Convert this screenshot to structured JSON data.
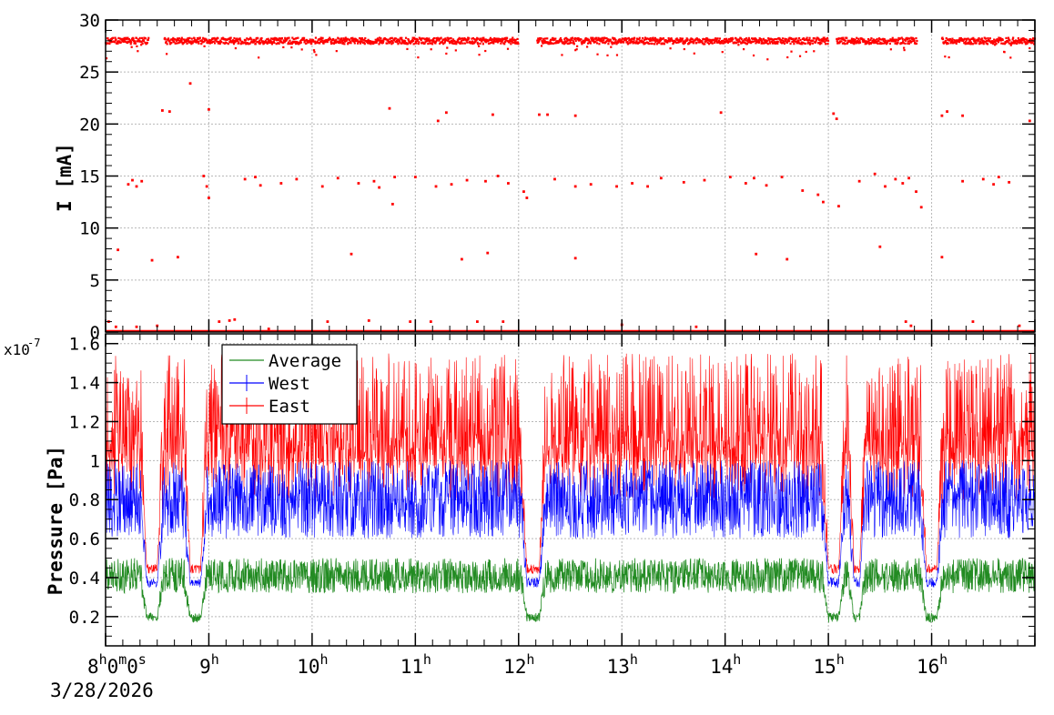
{
  "chart_data": [
    {
      "type": "scatter",
      "ylabel": "I [mA]",
      "ylim": [
        0,
        30
      ],
      "y_ticks": [
        "0",
        "5",
        "10",
        "15",
        "20",
        "25",
        "30"
      ],
      "xlim_hours": [
        8.0,
        17.0
      ],
      "grid": true,
      "color": "#ff0000",
      "series": [
        {
          "name": "",
          "beam_on_level_mA": 28.0,
          "beam_on_intervals_h": [
            [
              8.0,
              8.42
            ],
            [
              8.57,
              9.85
            ],
            [
              9.85,
              12.0
            ],
            [
              12.18,
              15.0
            ],
            [
              15.08,
              15.86
            ],
            [
              16.1,
              17.0
            ]
          ],
          "sparse_points": [
            [
              8.03,
              1.0
            ],
            [
              8.1,
              0.5
            ],
            [
              8.12,
              7.9
            ],
            [
              8.22,
              14.2
            ],
            [
              8.26,
              14.6
            ],
            [
              8.3,
              14.0
            ],
            [
              8.35,
              14.5
            ],
            [
              8.3,
              0.5
            ],
            [
              8.45,
              6.9
            ],
            [
              8.5,
              0.6
            ],
            [
              8.55,
              21.3
            ],
            [
              8.62,
              21.2
            ],
            [
              8.7,
              7.2
            ],
            [
              8.82,
              23.9
            ],
            [
              8.95,
              15.0
            ],
            [
              8.98,
              14.0
            ],
            [
              9.0,
              12.9
            ],
            [
              9.0,
              21.4
            ],
            [
              9.1,
              1.0
            ],
            [
              9.2,
              1.1
            ],
            [
              9.25,
              1.2
            ],
            [
              9.35,
              14.7
            ],
            [
              9.45,
              14.9
            ],
            [
              9.5,
              14.1
            ],
            [
              9.58,
              0.3
            ],
            [
              9.7,
              14.3
            ],
            [
              9.85,
              14.7
            ],
            [
              10.1,
              14.0
            ],
            [
              10.15,
              1.0
            ],
            [
              10.25,
              14.8
            ],
            [
              10.38,
              7.5
            ],
            [
              10.45,
              14.3
            ],
            [
              10.55,
              1.1
            ],
            [
              10.6,
              14.5
            ],
            [
              10.65,
              13.9
            ],
            [
              10.75,
              21.5
            ],
            [
              10.78,
              12.3
            ],
            [
              10.8,
              14.9
            ],
            [
              10.95,
              1.0
            ],
            [
              11.0,
              14.9
            ],
            [
              11.15,
              1.0
            ],
            [
              11.2,
              14.0
            ],
            [
              11.22,
              20.3
            ],
            [
              11.3,
              21.1
            ],
            [
              11.35,
              14.2
            ],
            [
              11.45,
              7.0
            ],
            [
              11.5,
              14.6
            ],
            [
              11.6,
              1.0
            ],
            [
              11.68,
              14.5
            ],
            [
              11.7,
              7.6
            ],
            [
              11.75,
              20.9
            ],
            [
              11.8,
              15.0
            ],
            [
              11.85,
              1.0
            ],
            [
              11.9,
              14.3
            ],
            [
              12.05,
              13.5
            ],
            [
              12.08,
              12.9
            ],
            [
              12.2,
              20.9
            ],
            [
              12.28,
              20.9
            ],
            [
              12.35,
              14.7
            ],
            [
              12.55,
              14.0
            ],
            [
              12.55,
              7.1
            ],
            [
              12.55,
              20.8
            ],
            [
              12.7,
              14.2
            ],
            [
              12.95,
              14.0
            ],
            [
              13.0,
              0.7
            ],
            [
              13.1,
              14.3
            ],
            [
              13.25,
              14.0
            ],
            [
              13.38,
              14.8
            ],
            [
              13.6,
              14.4
            ],
            [
              13.72,
              0.5
            ],
            [
              13.8,
              14.6
            ],
            [
              13.96,
              21.1
            ],
            [
              14.05,
              14.9
            ],
            [
              14.2,
              14.3
            ],
            [
              14.28,
              14.8
            ],
            [
              14.3,
              7.5
            ],
            [
              14.4,
              14.1
            ],
            [
              14.55,
              14.9
            ],
            [
              14.6,
              7.0
            ],
            [
              14.75,
              13.6
            ],
            [
              14.9,
              13.2
            ],
            [
              14.95,
              12.5
            ],
            [
              15.05,
              21.0
            ],
            [
              15.08,
              20.5
            ],
            [
              15.1,
              12.1
            ],
            [
              15.3,
              14.5
            ],
            [
              15.45,
              15.2
            ],
            [
              15.5,
              8.2
            ],
            [
              15.55,
              14.0
            ],
            [
              15.65,
              14.7
            ],
            [
              15.72,
              14.3
            ],
            [
              15.75,
              1.0
            ],
            [
              15.78,
              14.8
            ],
            [
              15.8,
              0.6
            ],
            [
              15.85,
              13.5
            ],
            [
              15.9,
              12.0
            ],
            [
              16.1,
              20.8
            ],
            [
              16.1,
              7.2
            ],
            [
              16.15,
              21.2
            ],
            [
              16.3,
              20.8
            ],
            [
              16.3,
              14.5
            ],
            [
              16.4,
              1.0
            ],
            [
              16.5,
              14.7
            ],
            [
              16.6,
              14.2
            ],
            [
              16.65,
              14.9
            ],
            [
              16.75,
              14.4
            ],
            [
              16.85,
              0.6
            ],
            [
              16.95,
              20.3
            ]
          ]
        }
      ]
    },
    {
      "type": "line",
      "ylabel": "Pressure [Pa]",
      "y_multiplier": "x10",
      "y_exponent": "-7",
      "ylim": [
        0.05,
        1.65
      ],
      "y_ticks": [
        "0.2",
        "0.4",
        "0.6",
        "0.8",
        "1",
        "1.2",
        "1.4",
        "1.6"
      ],
      "xlim_hours": [
        8.0,
        17.0
      ],
      "grid": true,
      "legend_position": "top-left",
      "series": [
        {
          "name": "Average",
          "color": "#228b22",
          "base": [
            0.32,
            0.5
          ],
          "dip": 0.17
        },
        {
          "name": "West",
          "color": "#0000ff",
          "base": [
            0.6,
            1.0
          ],
          "dip": 0.35
        },
        {
          "name": "East",
          "color": "#ff0000",
          "base": [
            0.8,
            1.55
          ],
          "dip": 0.42
        }
      ],
      "dips_h": [
        [
          8.4,
          8.5
        ],
        [
          8.82,
          8.92
        ],
        [
          12.08,
          12.2
        ],
        [
          15.0,
          15.1
        ],
        [
          15.25,
          15.3
        ],
        [
          15.95,
          16.05
        ]
      ]
    }
  ],
  "x_axis": {
    "tick_labels": [
      {
        "hour": 8,
        "text": "8",
        "suffix": "h0m0s"
      },
      {
        "hour": 9,
        "text": "9",
        "suffix": "h"
      },
      {
        "hour": 10,
        "text": "10",
        "suffix": "h"
      },
      {
        "hour": 11,
        "text": "11",
        "suffix": "h"
      },
      {
        "hour": 12,
        "text": "12",
        "suffix": "h"
      },
      {
        "hour": 13,
        "text": "13",
        "suffix": "h"
      },
      {
        "hour": 14,
        "text": "14",
        "suffix": "h"
      },
      {
        "hour": 15,
        "text": "15",
        "suffix": "h"
      },
      {
        "hour": 16,
        "text": "16",
        "suffix": "h"
      }
    ],
    "date": "3/28/2026"
  }
}
